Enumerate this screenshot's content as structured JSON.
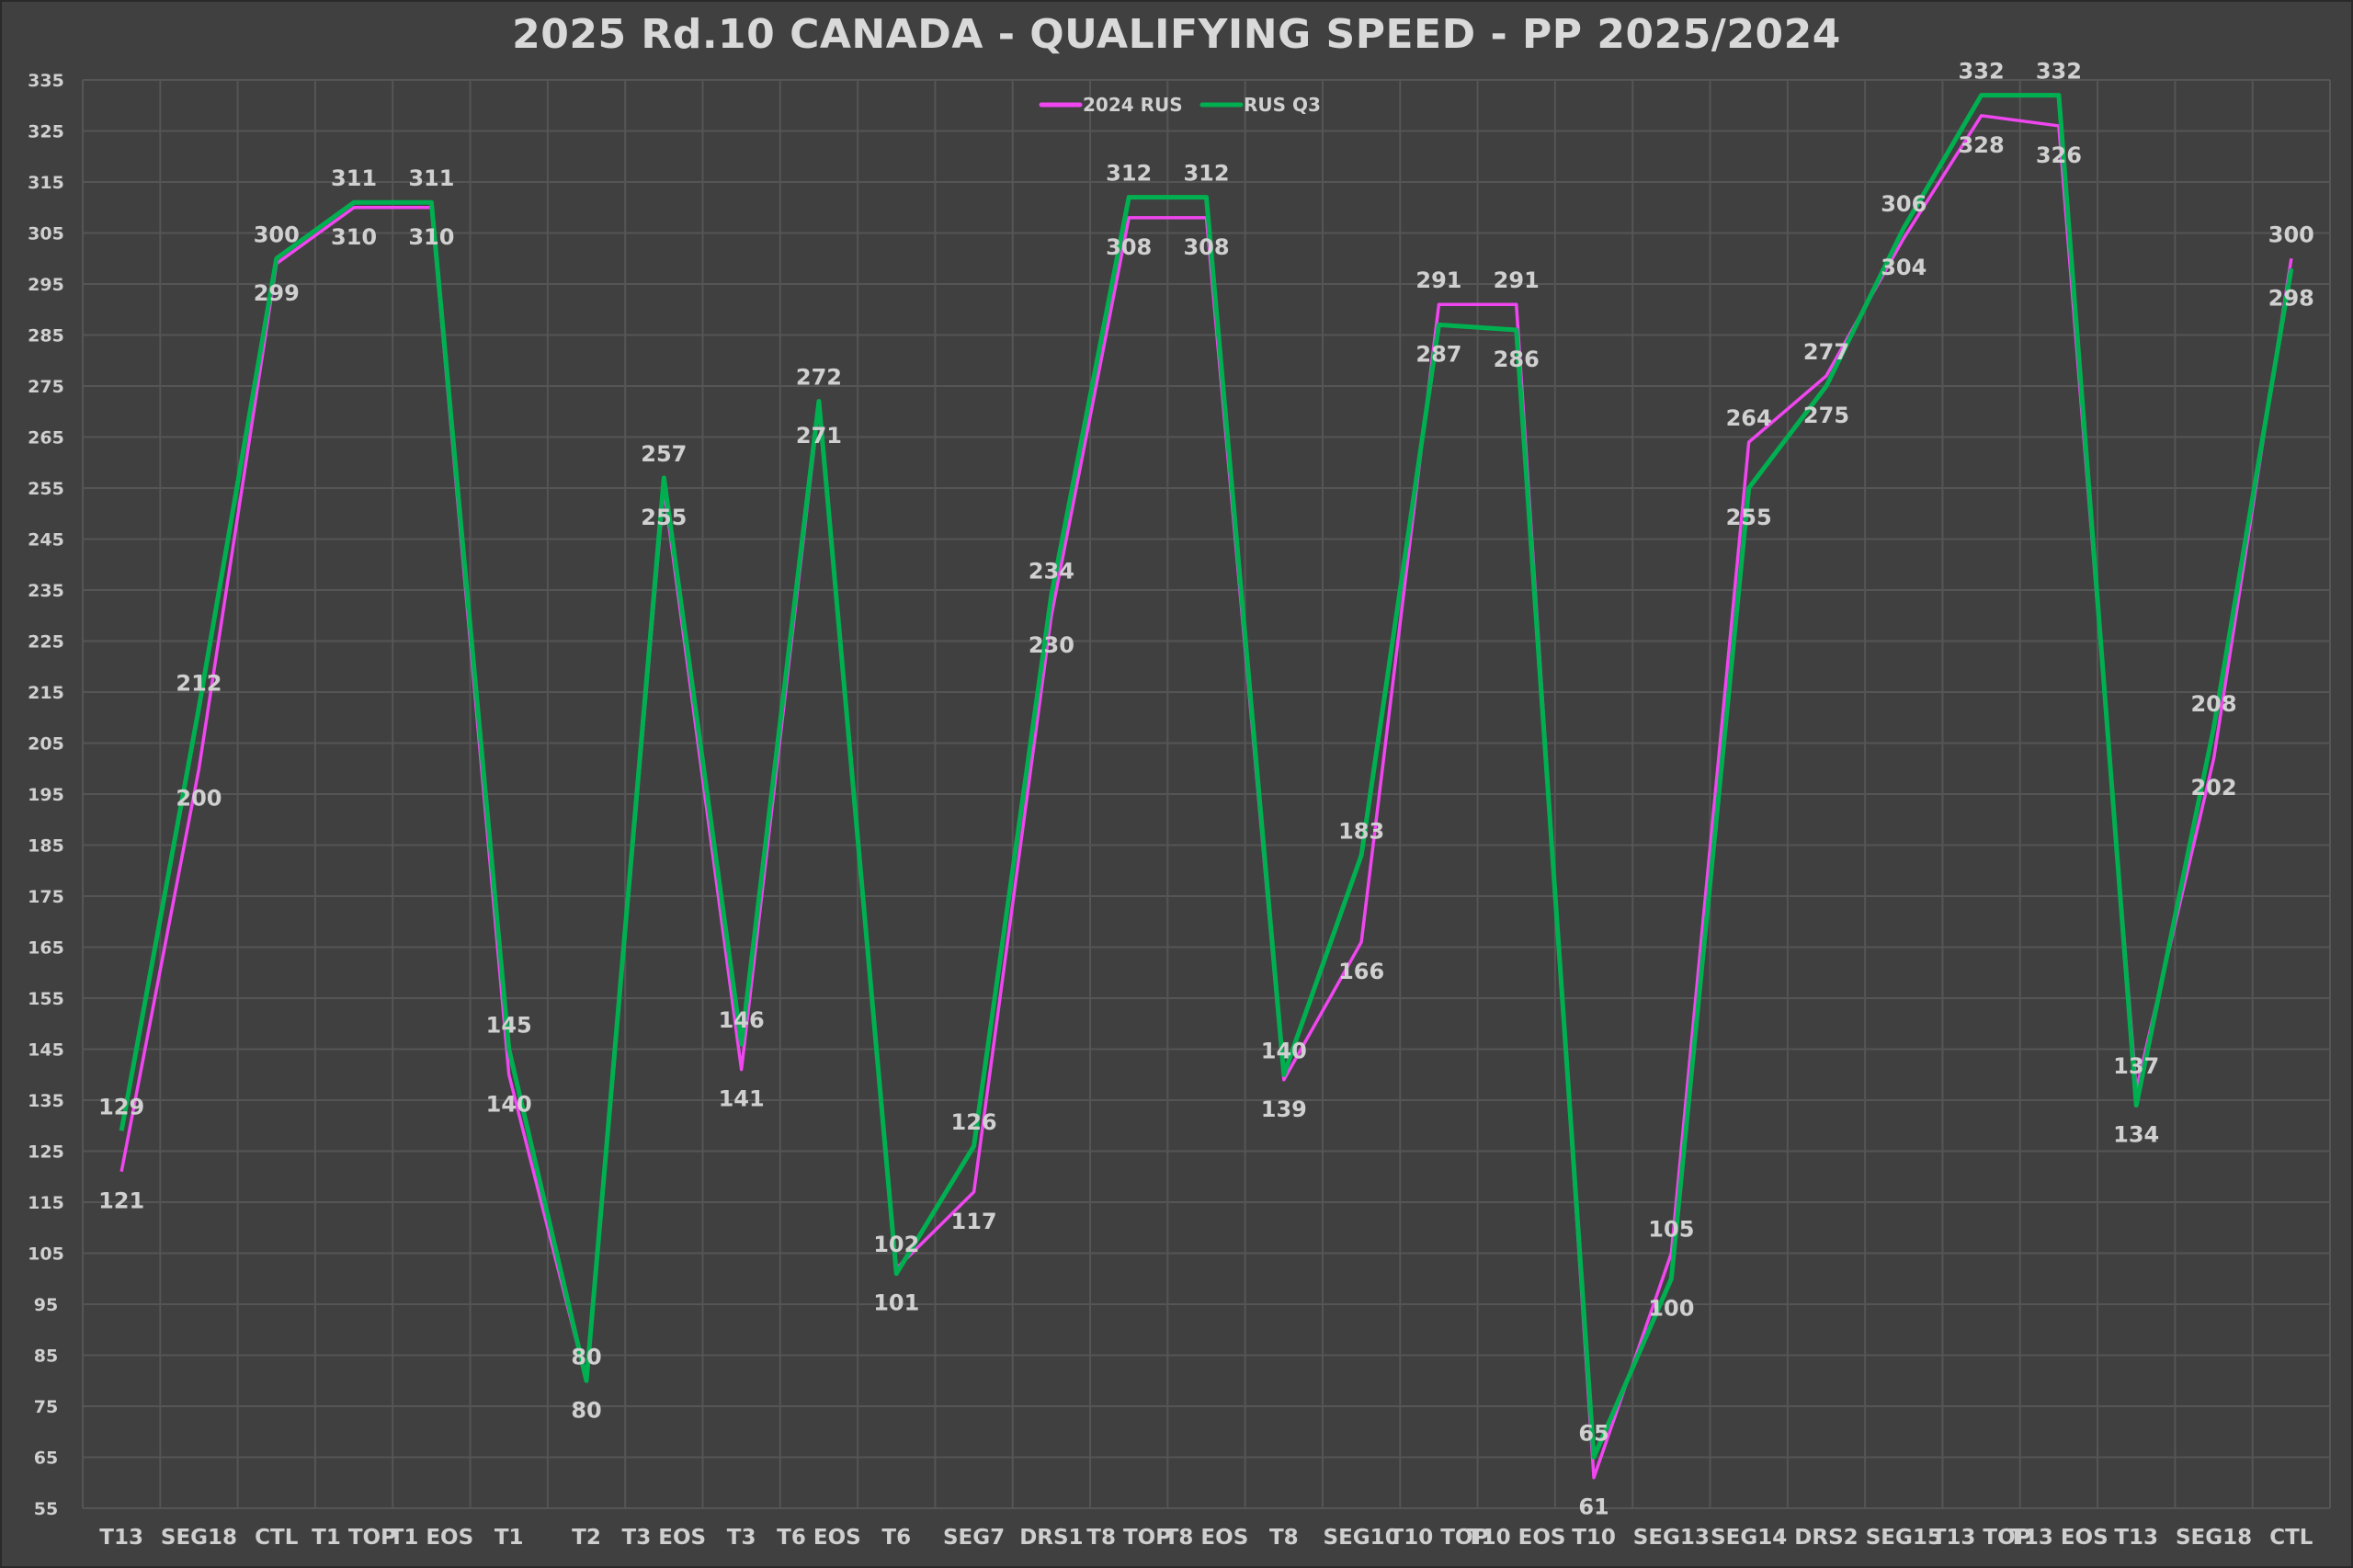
{
  "chart_data": {
    "type": "line",
    "title": "2025 Rd.10 CANADA - QUALIFYING SPEED - PP 2025/2024",
    "xlabel": "",
    "ylabel": "",
    "ylim": [
      55,
      335
    ],
    "ytick_step": 10,
    "grid": true,
    "legend_position": "top-center",
    "categories": [
      "T13",
      "SEG18",
      "CTL",
      "T1 TOP",
      "T1 EOS",
      "T1",
      "T2",
      "T3 EOS",
      "T3",
      "T6 EOS",
      "T6",
      "SEG7",
      "DRS1",
      "T8 TOP",
      "T8 EOS",
      "T8",
      "SEG10",
      "T10 TOP",
      "T10 EOS",
      "T10",
      "SEG13",
      "SEG14",
      "DRS2",
      "SEG15",
      "T13 TOP",
      "T13 EOS",
      "T13",
      "SEG18",
      "CTL"
    ],
    "series": [
      {
        "name": "2024 RUS",
        "color": "#f046f0",
        "values": [
          121,
          200,
          299,
          310,
          310,
          140,
          80,
          255,
          141,
          271,
          102,
          117,
          230,
          308,
          308,
          139,
          166,
          291,
          291,
          61,
          105,
          264,
          277,
          304,
          328,
          326,
          137,
          202,
          300
        ]
      },
      {
        "name": "RUS Q3",
        "color": "#00b050",
        "values": [
          129,
          212,
          300,
          311,
          311,
          145,
          80,
          257,
          146,
          272,
          101,
          126,
          234,
          312,
          312,
          140,
          183,
          287,
          286,
          65,
          100,
          255,
          275,
          306,
          332,
          332,
          134,
          208,
          298
        ]
      }
    ]
  }
}
